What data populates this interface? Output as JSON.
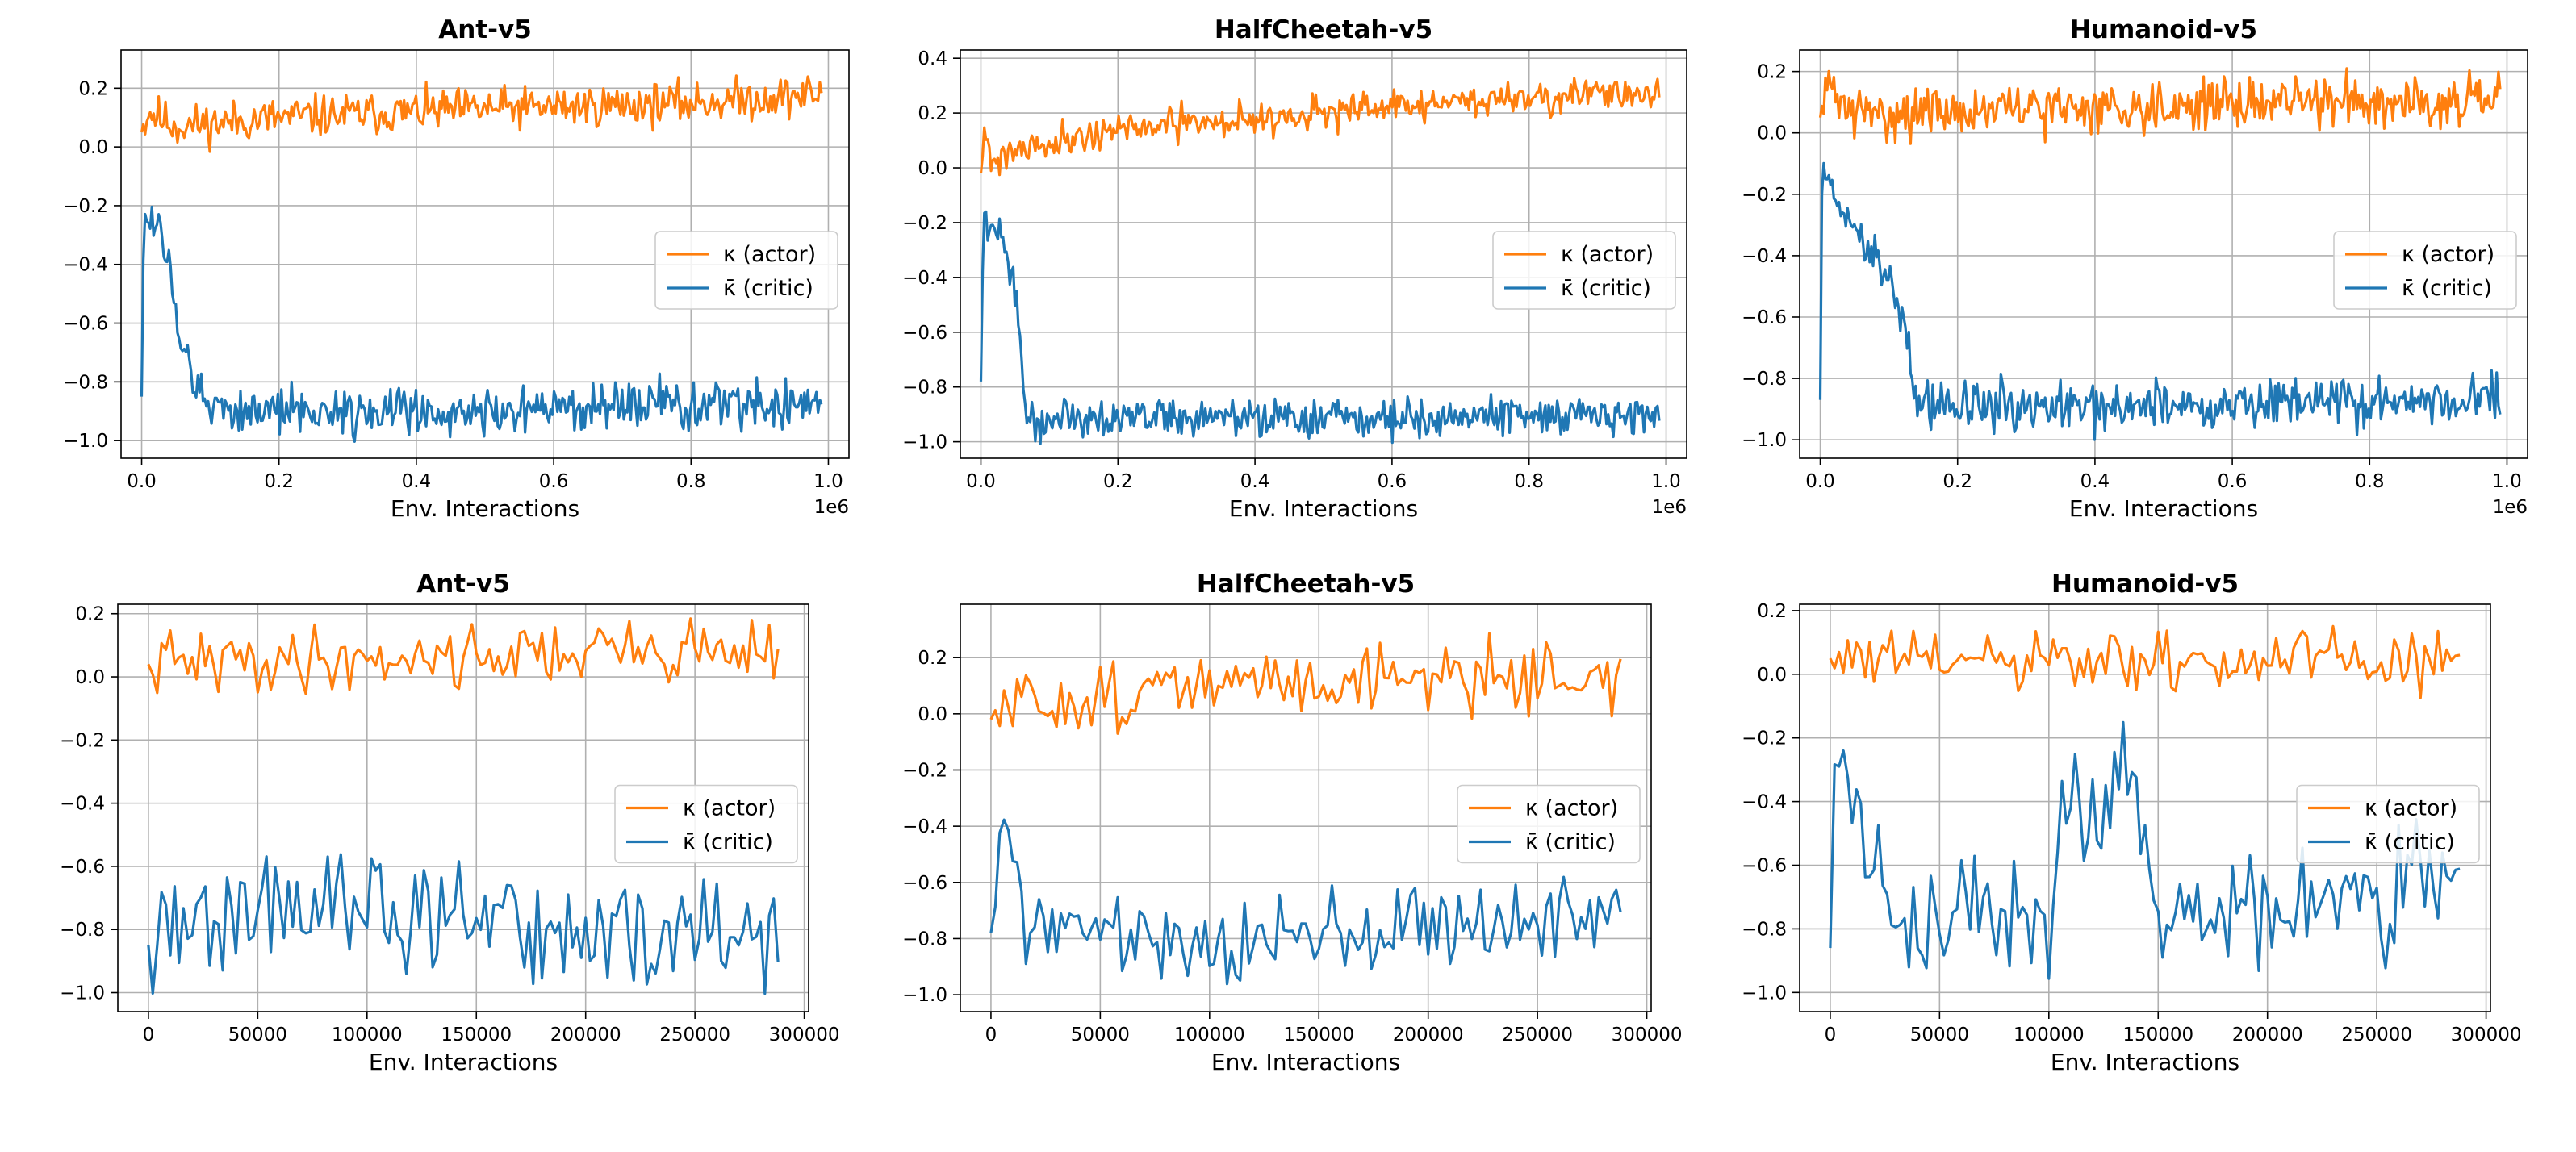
{
  "legend_labels": {
    "actor": "κ (actor)",
    "critic": "κ̄ (critic)"
  },
  "colors": {
    "actor": "#ff7f0e",
    "critic": "#1f77b4",
    "grid": "#b0b0b0",
    "axis": "#000000"
  },
  "chart_data": [
    {
      "type": "line",
      "title": "Ant-v5",
      "xlabel": "Env. Interactions",
      "x_offset_label": "1e6",
      "xlim": [
        -0.03,
        1.03
      ],
      "ylim": [
        -1.06,
        0.33
      ],
      "xticks": [
        0.0,
        0.2,
        0.4,
        0.6,
        0.8,
        1.0
      ],
      "xtick_labels": [
        "0.0",
        "0.2",
        "0.4",
        "0.6",
        "0.8",
        "1.0"
      ],
      "yticks": [
        -1.0,
        -0.8,
        -0.6,
        -0.4,
        -0.2,
        0.0,
        0.2
      ],
      "ytick_labels": [
        "−1.0",
        "−0.8",
        "−0.6",
        "−0.4",
        "−0.2",
        "0.0",
        "0.2"
      ],
      "grid": true,
      "legend": "center-right",
      "series": [
        {
          "key": "actor",
          "points_n": 400,
          "x_start": 0,
          "x_end": 0.99,
          "control": [
            [
              0,
              0.05
            ],
            [
              0.01,
              0.12
            ],
            [
              0.05,
              0.07
            ],
            [
              0.2,
              0.1
            ],
            [
              0.5,
              0.13
            ],
            [
              0.8,
              0.15
            ],
            [
              0.99,
              0.18
            ]
          ],
          "noise": 0.035,
          "seed": 11
        },
        {
          "key": "critic",
          "points_n": 400,
          "x_start": 0,
          "x_end": 0.99,
          "control": [
            [
              0,
              -0.85
            ],
            [
              0.003,
              -0.25
            ],
            [
              0.02,
              -0.25
            ],
            [
              0.04,
              -0.4
            ],
            [
              0.06,
              -0.7
            ],
            [
              0.09,
              -0.88
            ],
            [
              0.2,
              -0.9
            ],
            [
              0.5,
              -0.9
            ],
            [
              0.8,
              -0.88
            ],
            [
              0.99,
              -0.87
            ]
          ],
          "noise": 0.04,
          "seed": 12
        }
      ]
    },
    {
      "type": "line",
      "title": "HalfCheetah-v5",
      "xlabel": "Env. Interactions",
      "x_offset_label": "1e6",
      "xlim": [
        -0.03,
        1.03
      ],
      "ylim": [
        -1.06,
        0.43
      ],
      "xticks": [
        0.0,
        0.2,
        0.4,
        0.6,
        0.8,
        1.0
      ],
      "xtick_labels": [
        "0.0",
        "0.2",
        "0.4",
        "0.6",
        "0.8",
        "1.0"
      ],
      "yticks": [
        -1.0,
        -0.8,
        -0.6,
        -0.4,
        -0.2,
        0.0,
        0.2,
        0.4
      ],
      "ytick_labels": [
        "−1.0",
        "−0.8",
        "−0.6",
        "−0.4",
        "−0.2",
        "0.0",
        "0.2",
        "0.4"
      ],
      "grid": true,
      "legend": "center-right",
      "series": [
        {
          "key": "actor",
          "points_n": 400,
          "x_start": 0,
          "x_end": 0.99,
          "control": [
            [
              0,
              -0.02
            ],
            [
              0.005,
              0.15
            ],
            [
              0.015,
              0.02
            ],
            [
              0.05,
              0.07
            ],
            [
              0.2,
              0.14
            ],
            [
              0.5,
              0.2
            ],
            [
              0.8,
              0.26
            ],
            [
              0.99,
              0.27
            ]
          ],
          "noise": 0.03,
          "seed": 21
        },
        {
          "key": "critic",
          "points_n": 400,
          "x_start": 0,
          "x_end": 0.99,
          "control": [
            [
              0,
              -0.78
            ],
            [
              0.003,
              -0.22
            ],
            [
              0.03,
              -0.25
            ],
            [
              0.05,
              -0.45
            ],
            [
              0.07,
              -0.95
            ],
            [
              0.12,
              -0.9
            ],
            [
              0.5,
              -0.92
            ],
            [
              0.8,
              -0.9
            ],
            [
              0.99,
              -0.9
            ]
          ],
          "noise": 0.035,
          "seed": 22
        }
      ]
    },
    {
      "type": "line",
      "title": "Humanoid-v5",
      "xlabel": "Env. Interactions",
      "x_offset_label": "1e6",
      "xlim": [
        -0.03,
        1.03
      ],
      "ylim": [
        -1.06,
        0.27
      ],
      "xticks": [
        0.0,
        0.2,
        0.4,
        0.6,
        0.8,
        1.0
      ],
      "xtick_labels": [
        "0.0",
        "0.2",
        "0.4",
        "0.6",
        "0.8",
        "1.0"
      ],
      "yticks": [
        -1.0,
        -0.8,
        -0.6,
        -0.4,
        -0.2,
        0.0,
        0.2
      ],
      "ytick_labels": [
        "−1.0",
        "−0.8",
        "−0.6",
        "−0.4",
        "−0.2",
        "0.0",
        "0.2"
      ],
      "grid": true,
      "legend": "center-right",
      "series": [
        {
          "key": "actor",
          "points_n": 400,
          "x_start": 0,
          "x_end": 0.99,
          "control": [
            [
              0,
              0.05
            ],
            [
              0.01,
              0.15
            ],
            [
              0.05,
              0.06
            ],
            [
              0.2,
              0.07
            ],
            [
              0.5,
              0.09
            ],
            [
              0.8,
              0.11
            ],
            [
              0.99,
              0.1
            ]
          ],
          "noise": 0.04,
          "seed": 31
        },
        {
          "key": "critic",
          "points_n": 400,
          "x_start": 0,
          "x_end": 0.99,
          "control": [
            [
              0,
              -0.87
            ],
            [
              0.003,
              -0.12
            ],
            [
              0.03,
              -0.25
            ],
            [
              0.06,
              -0.35
            ],
            [
              0.1,
              -0.45
            ],
            [
              0.13,
              -0.7
            ],
            [
              0.14,
              -0.88
            ],
            [
              0.3,
              -0.9
            ],
            [
              0.6,
              -0.88
            ],
            [
              0.99,
              -0.87
            ]
          ],
          "noise": 0.04,
          "seed": 32
        }
      ]
    },
    {
      "type": "line",
      "title": "Ant-v5",
      "xlabel": "Env. Interactions",
      "xlim": [
        -14000,
        302000
      ],
      "ylim": [
        -1.06,
        0.23
      ],
      "xticks": [
        0,
        50000,
        100000,
        150000,
        200000,
        250000,
        300000
      ],
      "xtick_labels": [
        "0",
        "50000",
        "100000",
        "150000",
        "200000",
        "250000",
        "300000"
      ],
      "yticks": [
        -1.0,
        -0.8,
        -0.6,
        -0.4,
        -0.2,
        0.0,
        0.2
      ],
      "ytick_labels": [
        "−1.0",
        "−0.8",
        "−0.6",
        "−0.4",
        "−0.2",
        "0.0",
        "0.2"
      ],
      "grid": true,
      "legend": "center-right",
      "series": [
        {
          "key": "actor",
          "points_n": 145,
          "x_start": 0,
          "x_end": 288000,
          "control": [
            [
              0,
              0.04
            ],
            [
              100000,
              0.06
            ],
            [
              200000,
              0.08
            ],
            [
              288000,
              0.09
            ]
          ],
          "noise": 0.05,
          "seed": 41
        },
        {
          "key": "critic",
          "points_n": 145,
          "x_start": 0,
          "x_end": 288000,
          "control": [
            [
              0,
              -0.85
            ],
            [
              50000,
              -0.72
            ],
            [
              100000,
              -0.75
            ],
            [
              150000,
              -0.78
            ],
            [
              200000,
              -0.82
            ],
            [
              288000,
              -0.82
            ]
          ],
          "noise": 0.09,
          "seed": 42
        }
      ]
    },
    {
      "type": "line",
      "title": "HalfCheetah-v5",
      "xlabel": "Env. Interactions",
      "xlim": [
        -14000,
        302000
      ],
      "ylim": [
        -1.06,
        0.39
      ],
      "xticks": [
        0,
        50000,
        100000,
        150000,
        200000,
        250000,
        300000
      ],
      "xtick_labels": [
        "0",
        "50000",
        "100000",
        "150000",
        "200000",
        "250000",
        "300000"
      ],
      "yticks": [
        -1.0,
        -0.8,
        -0.6,
        -0.4,
        -0.2,
        0.0,
        0.2
      ],
      "ytick_labels": [
        "−1.0",
        "−0.8",
        "−0.6",
        "−0.4",
        "−0.2",
        "0.0",
        "0.2"
      ],
      "grid": true,
      "legend": "center-right",
      "series": [
        {
          "key": "actor",
          "points_n": 145,
          "x_start": 0,
          "x_end": 288000,
          "control": [
            [
              0,
              -0.02
            ],
            [
              10000,
              0.03
            ],
            [
              100000,
              0.1
            ],
            [
              200000,
              0.14
            ],
            [
              288000,
              0.13
            ]
          ],
          "noise": 0.06,
          "seed": 51
        },
        {
          "key": "critic",
          "points_n": 145,
          "x_start": 0,
          "x_end": 288000,
          "control": [
            [
              0,
              -0.78
            ],
            [
              6000,
              -0.35
            ],
            [
              15000,
              -0.75
            ],
            [
              100000,
              -0.8
            ],
            [
              200000,
              -0.75
            ],
            [
              288000,
              -0.72
            ]
          ],
          "noise": 0.07,
          "seed": 52
        }
      ]
    },
    {
      "type": "line",
      "title": "Humanoid-v5",
      "xlabel": "Env. Interactions",
      "xlim": [
        -14000,
        302000
      ],
      "ylim": [
        -1.06,
        0.22
      ],
      "xticks": [
        0,
        50000,
        100000,
        150000,
        200000,
        250000,
        300000
      ],
      "xtick_labels": [
        "0",
        "50000",
        "100000",
        "150000",
        "200000",
        "250000",
        "300000"
      ],
      "yticks": [
        -1.0,
        -0.8,
        -0.6,
        -0.4,
        -0.2,
        0.0,
        0.2
      ],
      "ytick_labels": [
        "−1.0",
        "−0.8",
        "−0.6",
        "−0.4",
        "−0.2",
        "0.0",
        "0.2"
      ],
      "grid": true,
      "legend": "center-right",
      "series": [
        {
          "key": "actor",
          "points_n": 145,
          "x_start": 0,
          "x_end": 288000,
          "control": [
            [
              0,
              0.05
            ],
            [
              100000,
              0.03
            ],
            [
              200000,
              0.04
            ],
            [
              288000,
              0.05
            ]
          ],
          "noise": 0.05,
          "seed": 61
        },
        {
          "key": "critic",
          "points_n": 145,
          "x_start": 0,
          "x_end": 288000,
          "control": [
            [
              0,
              -0.86
            ],
            [
              4000,
              -0.12
            ],
            [
              15000,
              -0.55
            ],
            [
              30000,
              -0.75
            ],
            [
              100000,
              -0.75
            ],
            [
              110000,
              -0.38
            ],
            [
              125000,
              -0.5
            ],
            [
              135000,
              -0.2
            ],
            [
              150000,
              -0.75
            ],
            [
              250000,
              -0.7
            ],
            [
              288000,
              -0.55
            ]
          ],
          "noise": 0.09,
          "seed": 62
        }
      ]
    }
  ]
}
